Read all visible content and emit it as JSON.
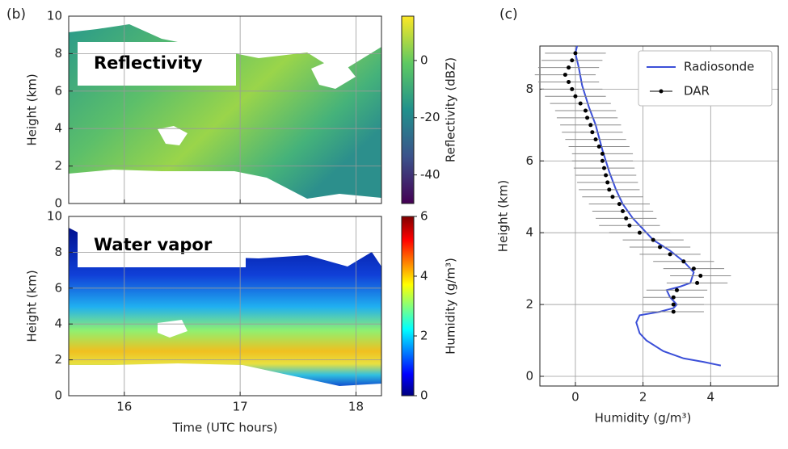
{
  "chart_data": [
    {
      "type": "heatmap",
      "panel_label": "(b)",
      "annotation": "Reflectivity",
      "ylabel": "Height (km)",
      "xlim": [
        15.52,
        18.22
      ],
      "xticks": [
        16,
        17,
        18
      ],
      "show_xtick_labels": false,
      "ylim": [
        0,
        10
      ],
      "yticks": [
        0,
        2,
        4,
        6,
        8,
        10
      ],
      "grid": true,
      "colormap": "viridis",
      "clim": [
        -50,
        15.5
      ],
      "cticks": [
        -40,
        -20,
        0
      ],
      "colorbar_label": "Reflectivity (dBZ)"
    },
    {
      "type": "heatmap",
      "annotation": "Water vapor",
      "ylabel": "Height (km)",
      "xlabel": "Time (UTC hours)",
      "xlim": [
        15.52,
        18.22
      ],
      "xticks": [
        16,
        17,
        18
      ],
      "ylim": [
        0,
        10
      ],
      "yticks": [
        0,
        2,
        4,
        6,
        8,
        10
      ],
      "grid": true,
      "colormap": "jet",
      "clim": [
        0,
        6
      ],
      "cticks": [
        0,
        2,
        4,
        6
      ],
      "colorbar_label": "Humidity (g/m³)"
    },
    {
      "type": "profile",
      "panel_label": "(c)",
      "xlabel": "Humidity (g/m³)",
      "ylabel": "Height (km)",
      "xlim": [
        -1.05,
        6
      ],
      "xticks": [
        0,
        2,
        4
      ],
      "ylim": [
        -0.27,
        9.2
      ],
      "yticks": [
        0,
        2,
        4,
        6,
        8
      ],
      "grid": true,
      "legend": "upper right",
      "series": [
        {
          "name": "Radiosonde",
          "type": "line",
          "color": "#3b4fd8",
          "x": [
            4.3,
            3.8,
            3.2,
            2.6,
            2.1,
            1.9,
            1.8,
            1.9,
            2.5,
            2.9,
            3.0,
            2.8,
            2.7,
            3.1,
            3.4,
            3.5,
            3.2,
            2.8,
            2.3,
            2.0,
            1.7,
            1.4,
            1.2,
            1.0,
            0.8,
            0.6,
            0.4,
            0.2,
            0.1,
            0.0,
            0.05
          ],
          "y": [
            0.3,
            0.4,
            0.5,
            0.7,
            1.0,
            1.2,
            1.5,
            1.7,
            1.8,
            1.9,
            2.0,
            2.2,
            2.4,
            2.5,
            2.6,
            2.9,
            3.2,
            3.5,
            3.8,
            4.1,
            4.4,
            4.8,
            5.2,
            5.7,
            6.3,
            7.0,
            7.5,
            8.1,
            8.6,
            9.0,
            9.2
          ]
        },
        {
          "name": "DAR",
          "type": "errorbar",
          "color": "#000000",
          "errcolor": "#8a8a8a",
          "xerr": 0.9,
          "x": [
            2.9,
            2.9,
            2.9,
            3.0,
            3.6,
            3.7,
            3.5,
            3.2,
            2.8,
            2.5,
            2.3,
            1.9,
            1.6,
            1.5,
            1.4,
            1.3,
            1.1,
            1.0,
            0.95,
            0.9,
            0.85,
            0.8,
            0.8,
            0.7,
            0.6,
            0.5,
            0.45,
            0.35,
            0.3,
            0.15,
            0.0,
            -0.1,
            -0.2,
            -0.3,
            -0.2,
            -0.1,
            0.0
          ],
          "y": [
            1.8,
            2.0,
            2.2,
            2.4,
            2.6,
            2.8,
            3.0,
            3.2,
            3.4,
            3.6,
            3.8,
            4.0,
            4.2,
            4.4,
            4.6,
            4.8,
            5.0,
            5.2,
            5.4,
            5.6,
            5.8,
            6.0,
            6.2,
            6.4,
            6.6,
            6.8,
            7.0,
            7.2,
            7.4,
            7.6,
            7.8,
            8.0,
            8.2,
            8.4,
            8.6,
            8.8,
            9.0
          ]
        }
      ]
    }
  ]
}
